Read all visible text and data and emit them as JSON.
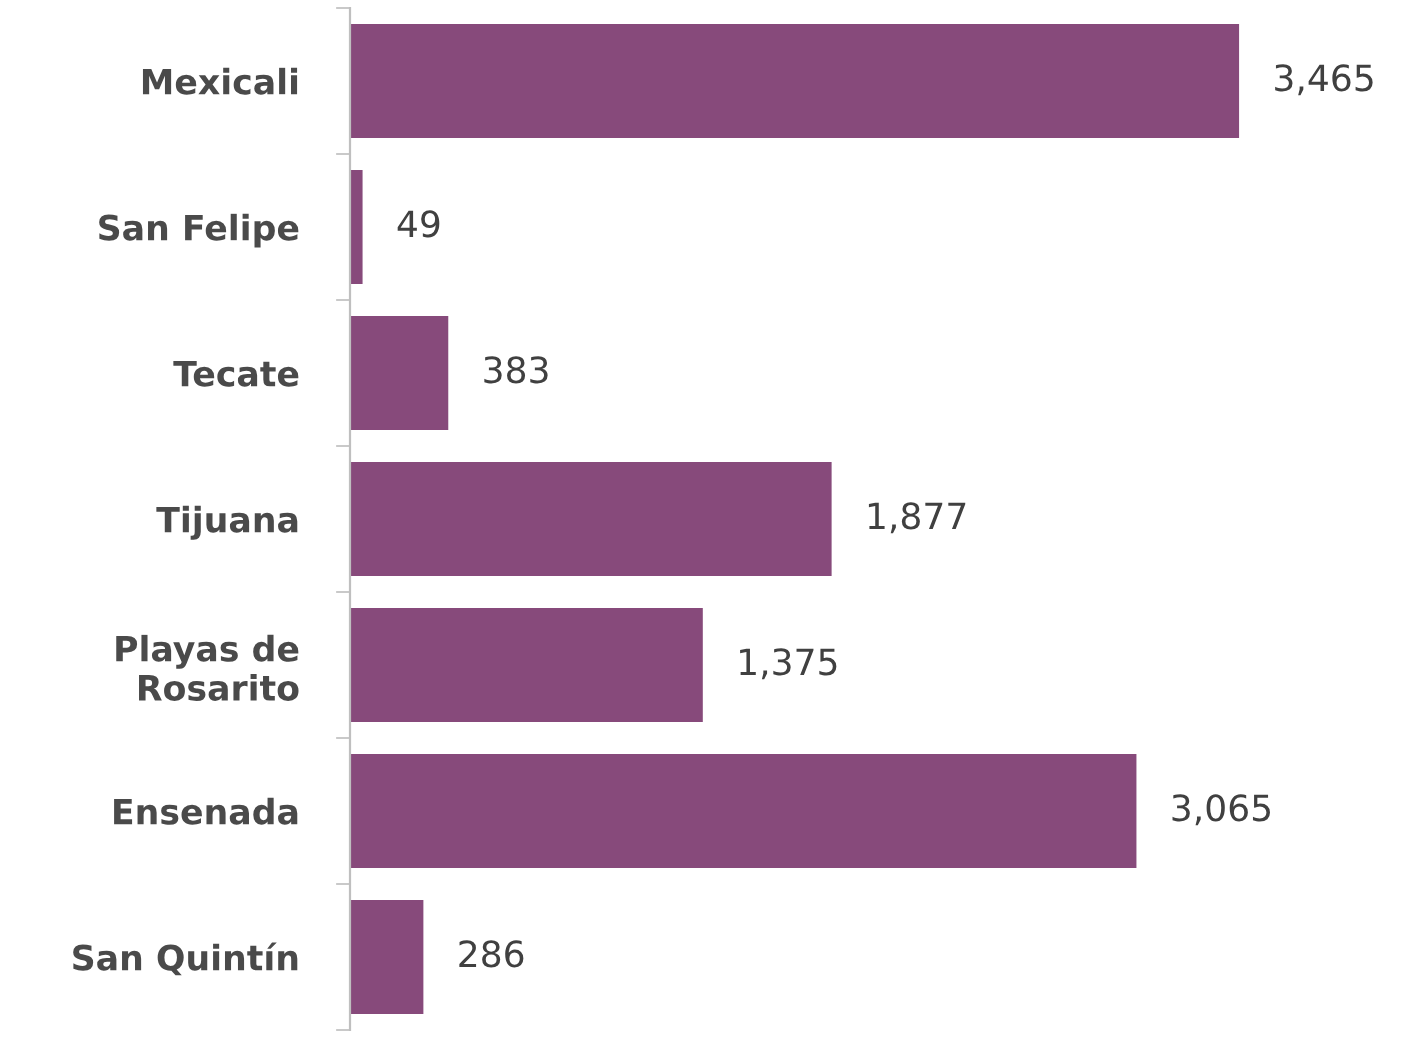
{
  "chart_data": {
    "type": "bar",
    "orientation": "horizontal",
    "categories": [
      "Mexicali",
      "San Felipe",
      "Tecate",
      "Tijuana",
      "Playas de\nRosarito",
      "Ensenada",
      "San Quintín"
    ],
    "values": [
      3465,
      49,
      383,
      1877,
      1375,
      3065,
      286
    ],
    "value_labels": [
      "3,465",
      "49",
      "383",
      "1,877",
      "1,375",
      "3,065",
      "286"
    ],
    "color": "#874a7b",
    "grid": false,
    "legend": false,
    "tick_labels": "y"
  }
}
